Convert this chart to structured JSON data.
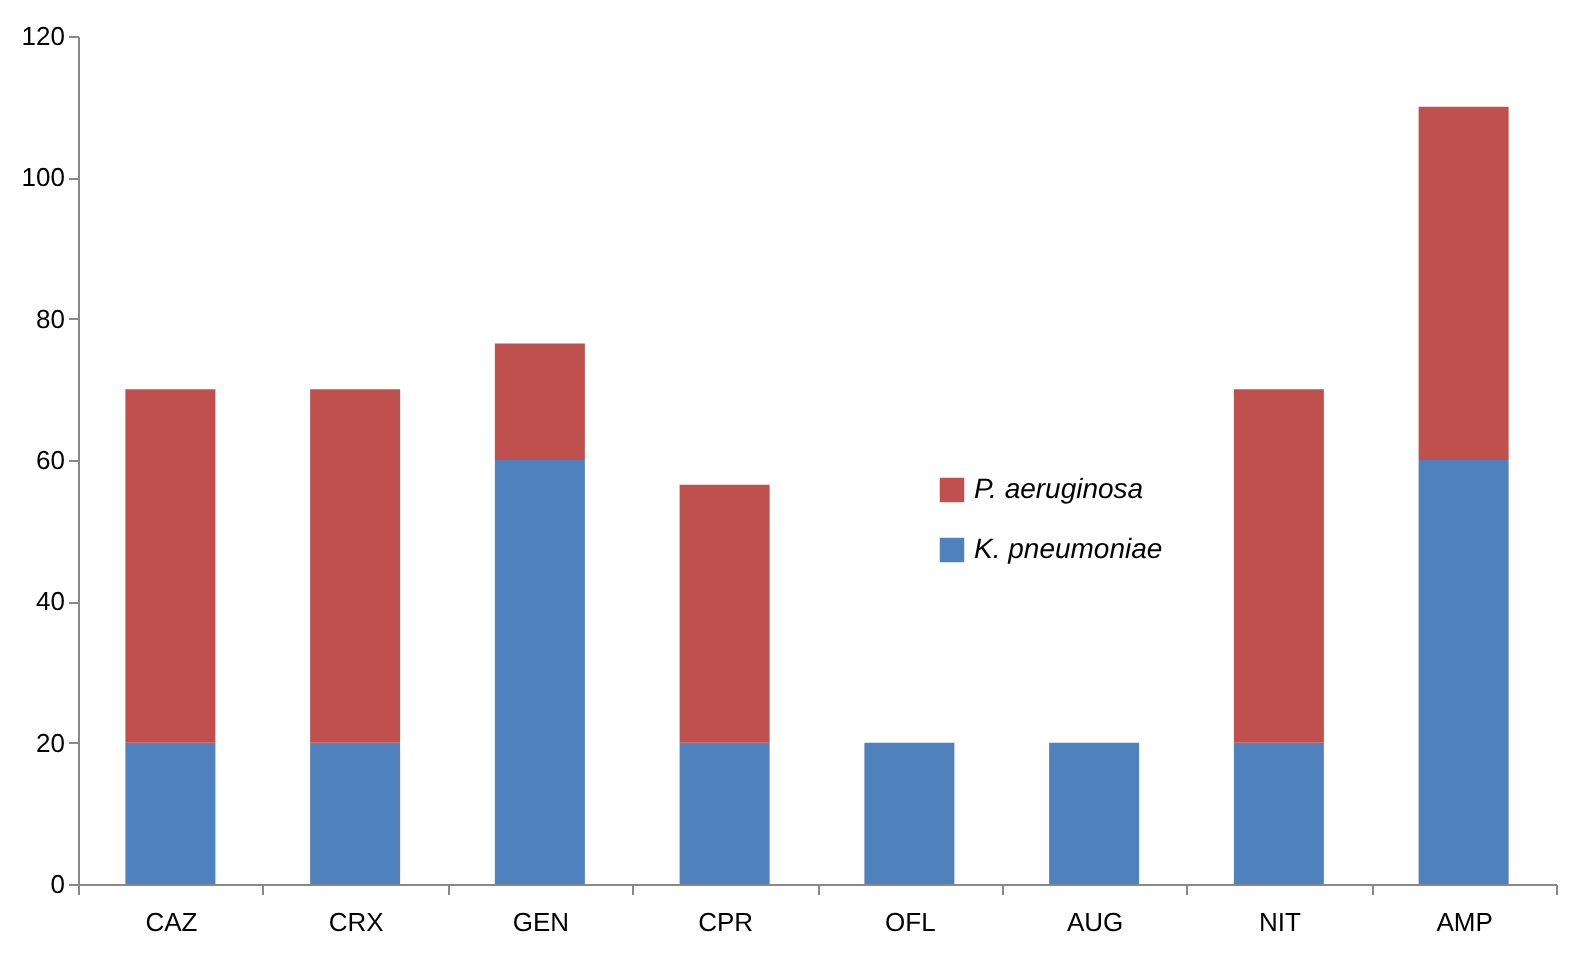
{
  "chart_data": {
    "type": "bar",
    "stacked": true,
    "categories": [
      "CAZ",
      "CRX",
      "GEN",
      "CPR",
      "OFL",
      "AUG",
      "NIT",
      "AMP"
    ],
    "series": [
      {
        "name": "K. pneumoniae",
        "color": "#4f81bd",
        "values": [
          20,
          20,
          60,
          20,
          20,
          20,
          20,
          60
        ]
      },
      {
        "name": "P. aeruginosa",
        "color": "#c0504d",
        "values": [
          50,
          50,
          16.5,
          36.5,
          0,
          0,
          50,
          50
        ]
      }
    ],
    "ylim": [
      0,
      120
    ],
    "yticks": [
      0,
      20,
      40,
      60,
      80,
      100,
      120
    ],
    "grid": false,
    "legend": "right"
  }
}
